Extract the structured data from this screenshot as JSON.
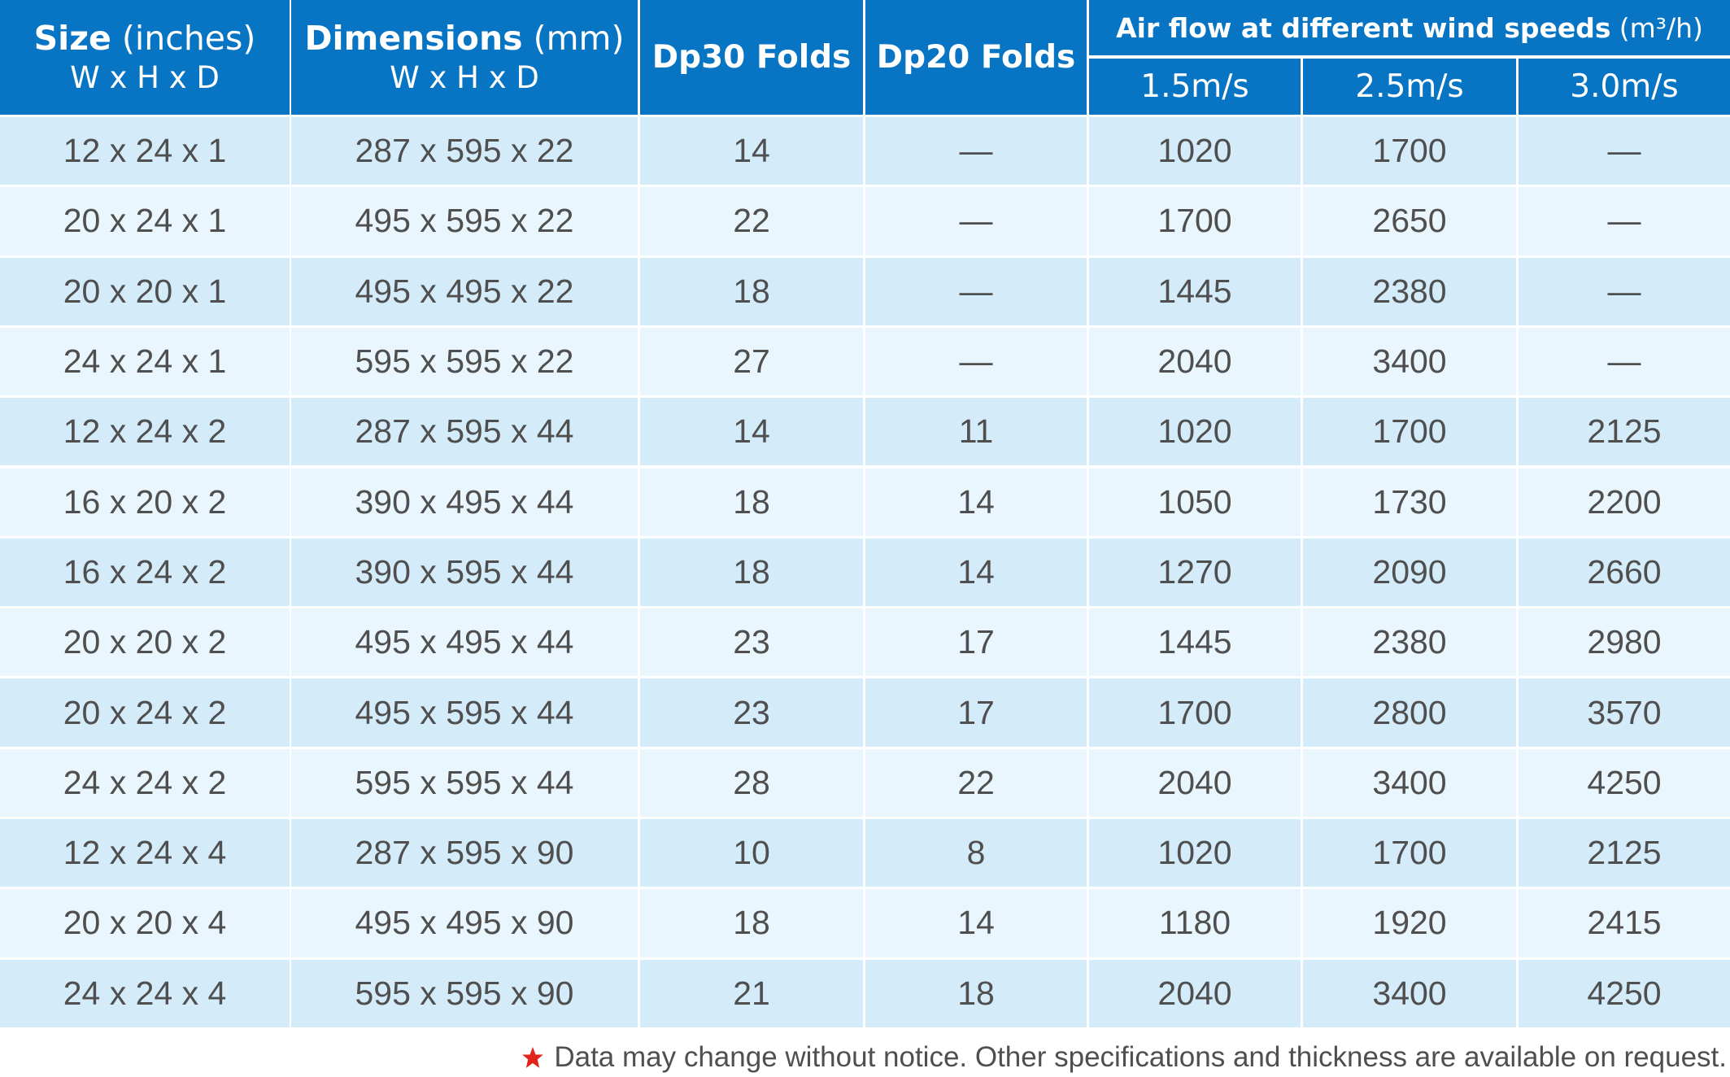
{
  "header": {
    "size": {
      "label": "Size",
      "unit": "(inches)",
      "sub": "W x H x D"
    },
    "dimensions": {
      "label": "Dimensions",
      "unit": "(mm)",
      "sub": "W x H x D"
    },
    "dp30": "Dp30 Folds",
    "dp20": "Dp20 Folds",
    "airflow": {
      "label": "Air flow at different wind speeds",
      "unit": "(m³/h)",
      "speeds": [
        "1.5m/s",
        "2.5m/s",
        "3.0m/s"
      ]
    }
  },
  "rows": [
    [
      "12 x 24 x 1",
      "287 x 595 x 22",
      "14",
      "—",
      "1020",
      "1700",
      "—"
    ],
    [
      "20 x 24 x 1",
      "495 x 595 x 22",
      "22",
      "—",
      "1700",
      "2650",
      "—"
    ],
    [
      "20 x 20 x 1",
      "495 x 495 x 22",
      "18",
      "—",
      "1445",
      "2380",
      "—"
    ],
    [
      "24 x 24 x 1",
      "595 x 595 x 22",
      "27",
      "—",
      "2040",
      "3400",
      "—"
    ],
    [
      "12 x 24 x 2",
      "287 x 595 x 44",
      "14",
      "11",
      "1020",
      "1700",
      "2125"
    ],
    [
      "16 x 20 x 2",
      "390 x 495 x 44",
      "18",
      "14",
      "1050",
      "1730",
      "2200"
    ],
    [
      "16 x 24 x 2",
      "390 x 595 x 44",
      "18",
      "14",
      "1270",
      "2090",
      "2660"
    ],
    [
      "20 x 20 x 2",
      "495 x 495 x 44",
      "23",
      "17",
      "1445",
      "2380",
      "2980"
    ],
    [
      "20 x 24 x 2",
      "495 x 595 x 44",
      "23",
      "17",
      "1700",
      "2800",
      "3570"
    ],
    [
      "24 x 24 x 2",
      "595 x 595 x 44",
      "28",
      "22",
      "2040",
      "3400",
      "4250"
    ],
    [
      "12 x 24 x 4",
      "287 x 595 x 90",
      "10",
      "8",
      "1020",
      "1700",
      "2125"
    ],
    [
      "20 x 20 x 4",
      "495 x 495 x 90",
      "18",
      "14",
      "1180",
      "1920",
      "2415"
    ],
    [
      "24 x 24 x 4",
      "595 x 595 x 90",
      "21",
      "18",
      "2040",
      "3400",
      "4250"
    ]
  ],
  "footer": "Data may change without notice. Other specifications and thickness are available on request."
}
